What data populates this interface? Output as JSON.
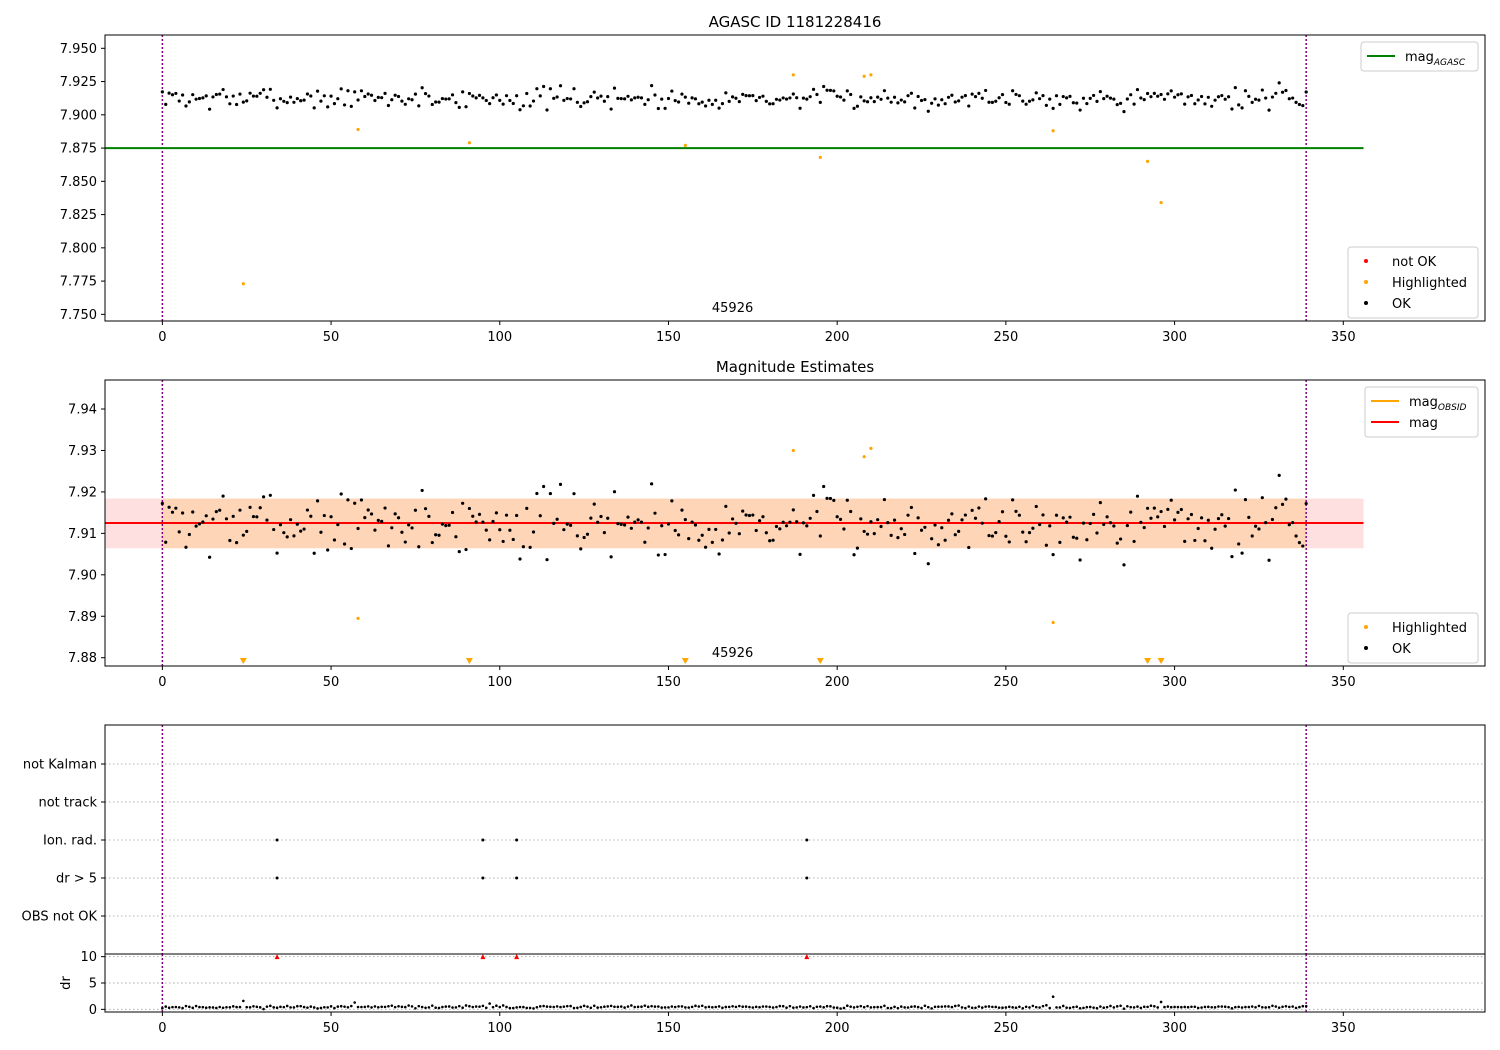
{
  "chart_data": [
    {
      "type": "scatter",
      "title": "AGASC ID 1181228416",
      "xlim": [
        -17,
        392
      ],
      "ylim": [
        7.745,
        7.96
      ],
      "x_ticks": [
        0,
        50,
        100,
        150,
        200,
        250,
        300,
        350
      ],
      "y_ticks": [
        7.75,
        7.775,
        7.8,
        7.825,
        7.85,
        7.875,
        7.9,
        7.925,
        7.95
      ],
      "y_tick_labels": [
        "7.750",
        "7.775",
        "7.800",
        "7.825",
        "7.850",
        "7.875",
        "7.900",
        "7.925",
        "7.950"
      ],
      "obsid_label": "45926",
      "obsid_label_x": 169,
      "obs_boundaries": [
        0,
        339
      ],
      "hline": {
        "name": "mag",
        "subscript": "AGASC",
        "value": 7.875,
        "x_range": [
          -17,
          356
        ],
        "color": "#008000"
      },
      "legend_upper": [
        {
          "name": "mag",
          "subscript": "AGASC",
          "color": "#008000"
        }
      ],
      "legend_lower": [
        {
          "name": "not OK",
          "color": "#ff0000"
        },
        {
          "name": "Highlighted",
          "color": "#ffa500"
        },
        {
          "name": "OK",
          "color": "#000000"
        }
      ],
      "highlighted": [
        [
          24,
          7.773
        ],
        [
          58,
          7.889
        ],
        [
          91,
          7.879
        ],
        [
          155,
          7.877
        ],
        [
          187,
          7.93
        ],
        [
          195,
          7.868
        ],
        [
          208,
          7.929
        ],
        [
          210,
          7.93
        ],
        [
          264,
          7.888
        ],
        [
          292,
          7.865
        ],
        [
          296,
          7.834
        ]
      ],
      "ok_series": {
        "n": 340,
        "x_start": 0,
        "x_step": 1,
        "mean": 7.9125,
        "spread": 0.0062,
        "seed": 7
      }
    },
    {
      "type": "scatter",
      "title": "Magnitude Estimates",
      "xlim": [
        -17,
        392
      ],
      "ylim": [
        7.878,
        7.947
      ],
      "x_ticks": [
        0,
        50,
        100,
        150,
        200,
        250,
        300,
        350
      ],
      "y_ticks": [
        7.88,
        7.89,
        7.9,
        7.91,
        7.92,
        7.93,
        7.94
      ],
      "y_tick_labels": [
        "7.88",
        "7.89",
        "7.90",
        "7.91",
        "7.92",
        "7.93",
        "7.94"
      ],
      "obsid_label": "45926",
      "obsid_label_x": 169,
      "obs_boundaries": [
        0,
        339
      ],
      "mag_obsid": {
        "name": "mag",
        "subscript": "OBSID",
        "value": 7.9125,
        "band": [
          7.9064,
          7.9184
        ],
        "x_range": [
          0,
          339
        ],
        "color": "#ffa500"
      },
      "mag": {
        "name": "mag",
        "value": 7.9125,
        "band": [
          7.9064,
          7.9184
        ],
        "x_range": [
          -17,
          356
        ],
        "color": "#ff0000"
      },
      "legend_upper": [
        {
          "name": "mag",
          "subscript": "OBSID",
          "color": "#ffa500"
        },
        {
          "name": "mag",
          "color": "#ff0000"
        }
      ],
      "legend_lower": [
        {
          "name": "Highlighted",
          "color": "#ffa500"
        },
        {
          "name": "OK",
          "color": "#000000"
        }
      ],
      "highlighted": [
        [
          58,
          7.8895
        ],
        [
          187,
          7.93
        ],
        [
          208,
          7.9285
        ],
        [
          210,
          7.9305
        ],
        [
          264,
          7.8885
        ]
      ],
      "highlighted_out_of_range": [
        24,
        91,
        155,
        195,
        292,
        296
      ],
      "ok_series": {
        "n": 340,
        "x_start": 0,
        "x_step": 1,
        "mean": 7.9125,
        "spread": 0.0062,
        "seed": 7
      }
    },
    {
      "type": "scatter",
      "title": "",
      "xlim": [
        -17,
        392
      ],
      "flag_rows": [
        "not Kalman",
        "not track",
        "Ion. rad.",
        "dr > 5",
        "OBS not OK"
      ],
      "flag_points": {
        "Ion. rad.": [
          34,
          95,
          105,
          191
        ],
        "dr > 5": [
          34,
          95,
          105,
          191
        ]
      },
      "obs_boundaries": [
        0,
        339
      ]
    },
    {
      "type": "scatter",
      "title": "",
      "xlim": [
        -17,
        392
      ],
      "ylim": [
        -0.5,
        10.5
      ],
      "ylabel": "dr",
      "x_ticks": [
        0,
        50,
        100,
        150,
        200,
        250,
        300,
        350
      ],
      "y_ticks": [
        0,
        5,
        10
      ],
      "y_tick_labels": [
        "0",
        "5",
        "10"
      ],
      "obs_boundaries": [
        0,
        339
      ],
      "clipped_points": [
        34,
        95,
        105,
        191
      ],
      "dr_spikes": [
        [
          24,
          1.6
        ],
        [
          57,
          1.3
        ],
        [
          97,
          1.1
        ],
        [
          264,
          2.4
        ],
        [
          296,
          1.4
        ]
      ],
      "dr_series": {
        "n": 340,
        "x_start": 0,
        "x_step": 1,
        "mean": 0.45,
        "spread": 0.2,
        "seed": 11
      }
    }
  ]
}
